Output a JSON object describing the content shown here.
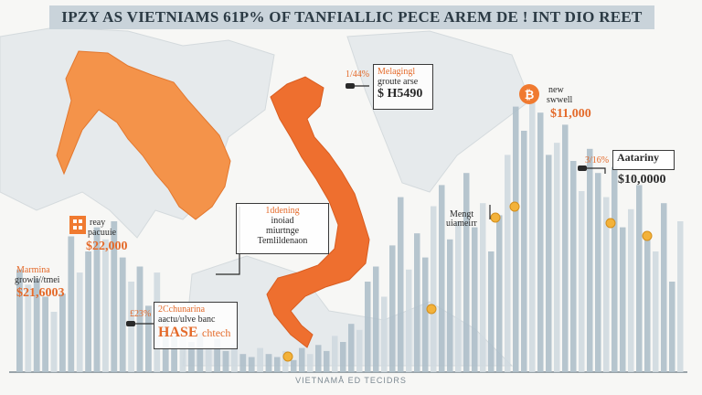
{
  "title": "IPZY AS VIETNIAMS 61P% OF TANFIALLIC PECE AREM DE ! INT DIO REET",
  "footer": "VIETNAMÅ ED TECIDRS",
  "colors": {
    "orange": "#f07a30",
    "orange_dark": "#e46a2a",
    "bar": "#aebfca",
    "bar_light": "#cfd9e0",
    "coin": "#f3b23a"
  },
  "icons": [
    "building-icon",
    "bitcoin-icon",
    "coin-icon"
  ],
  "annotations": {
    "left_top": {
      "label1": "Marmina",
      "label2": "growli//tmei",
      "value": "$21,6003"
    },
    "left_mid": {
      "label1": "reay",
      "label2": "pacuuie",
      "value": "$22,000"
    },
    "left_box": {
      "percent": "£23%",
      "label1": "2Cchunarina",
      "label2": "aactu/ulve banc",
      "hase": "HASE",
      "chart": "chtech"
    },
    "map_top": {
      "percent": "1/44%",
      "label1": "Melagingl",
      "label2": "groute arse",
      "value": "$ H5490"
    },
    "map_center": {
      "line1": "1ddening",
      "line2": "inoiad",
      "line3": "miurtnge",
      "line4": "Temlildenaon"
    },
    "right_top": {
      "label1": "new",
      "label2": "swwell",
      "value": "$11,000"
    },
    "right_mid": {
      "percent": "3/16%",
      "label1": "Aatariny",
      "value": "$10,0000"
    },
    "right_low": {
      "label1": "Mengt",
      "label2": "uiameirr"
    }
  },
  "chart_data": [
    {
      "type": "bar",
      "title": "",
      "xlabel": "",
      "ylabel": "",
      "ylim": [
        0,
        1
      ],
      "values": [
        0.34,
        0.29,
        0.31,
        0.25,
        0.2,
        0.26,
        0.45,
        0.33,
        0.4,
        0.48,
        0.44,
        0.5,
        0.38,
        0.3,
        0.35,
        0.22,
        0.33,
        0.18,
        0.12,
        0.15,
        0.1,
        0.13,
        0.08,
        0.11,
        0.07,
        0.09,
        0.06,
        0.05,
        0.08,
        0.06
      ]
    },
    {
      "type": "bar",
      "title": "",
      "xlabel": "",
      "ylabel": "",
      "ylim": [
        0,
        1
      ],
      "values": [
        0.05,
        0.07,
        0.04,
        0.08,
        0.06,
        0.09,
        0.07,
        0.12,
        0.1,
        0.16,
        0.14,
        0.3,
        0.35,
        0.25,
        0.42,
        0.58,
        0.34,
        0.46,
        0.38,
        0.55,
        0.62,
        0.44,
        0.5,
        0.66,
        0.48,
        0.56,
        0.4,
        0.52,
        0.72,
        0.88,
        0.8,
        0.9,
        0.86,
        0.72,
        0.76,
        0.82,
        0.7,
        0.6,
        0.74,
        0.66,
        0.58,
        0.68,
        0.48,
        0.54,
        0.62,
        0.46,
        0.4,
        0.56,
        0.3,
        0.5
      ]
    }
  ]
}
